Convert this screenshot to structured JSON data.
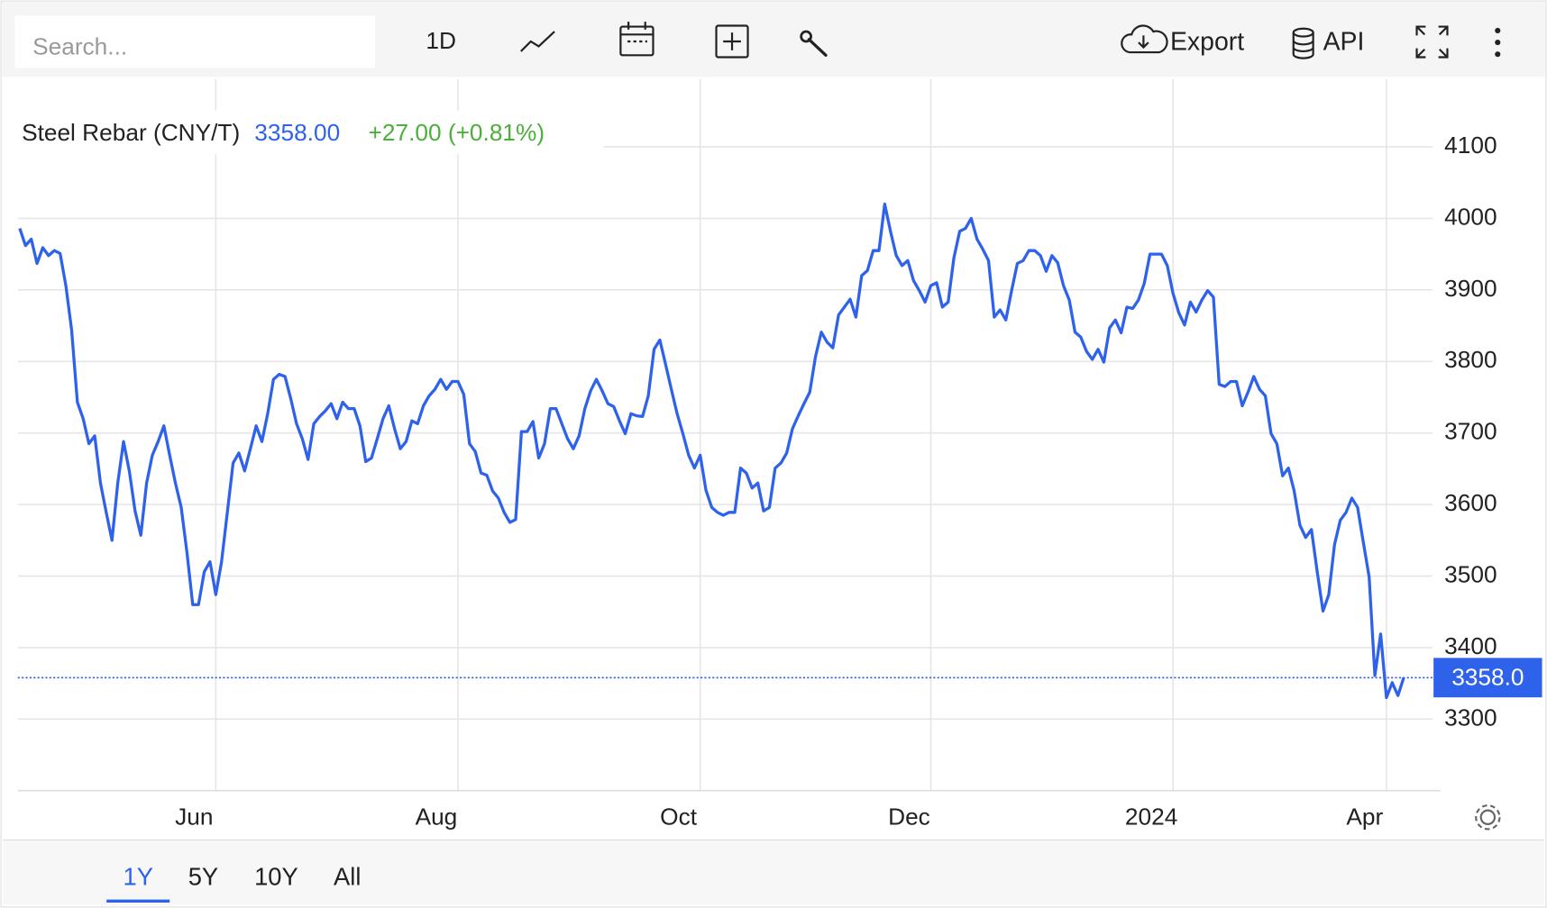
{
  "toolbar": {
    "search_placeholder": "Search...",
    "interval": "1D",
    "export": "Export",
    "api": "API"
  },
  "ranges": [
    "1Y",
    "5Y",
    "10Y",
    "All"
  ],
  "active_range": "1Y",
  "chart_data": {
    "type": "line",
    "title": "Steel Rebar (CNY/T)",
    "price": "3358.00",
    "change": "+27.00 (+0.81%)",
    "last_label": "3358.0",
    "color": "#2f62ea",
    "grid": true,
    "values": [
      3986,
      3962,
      3971,
      3937,
      3959,
      3948,
      3955,
      3951,
      3906,
      3844,
      3743,
      3720,
      3685,
      3696,
      3630,
      3589,
      3550,
      3630,
      3688,
      3647,
      3591,
      3557,
      3630,
      3669,
      3688,
      3710,
      3669,
      3630,
      3596,
      3533,
      3460,
      3460,
      3506,
      3520,
      3474,
      3520,
      3589,
      3658,
      3672,
      3647,
      3678,
      3710,
      3688,
      3727,
      3775,
      3782,
      3779,
      3748,
      3713,
      3692,
      3663,
      3713,
      3723,
      3731,
      3741,
      3720,
      3743,
      3734,
      3734,
      3710,
      3660,
      3665,
      3692,
      3720,
      3738,
      3706,
      3678,
      3688,
      3717,
      3713,
      3738,
      3752,
      3761,
      3775,
      3761,
      3772,
      3772,
      3754,
      3685,
      3674,
      3644,
      3641,
      3619,
      3609,
      3589,
      3575,
      3579,
      3702,
      3702,
      3716,
      3665,
      3685,
      3734,
      3734,
      3713,
      3692,
      3678,
      3696,
      3734,
      3759,
      3775,
      3759,
      3741,
      3737,
      3717,
      3699,
      3727,
      3724,
      3723,
      3752,
      3817,
      3830,
      3796,
      3761,
      3727,
      3699,
      3669,
      3651,
      3669,
      3620,
      3596,
      3589,
      3585,
      3589,
      3589,
      3651,
      3644,
      3623,
      3630,
      3591,
      3596,
      3651,
      3658,
      3672,
      3706,
      3724,
      3741,
      3757,
      3807,
      3841,
      3827,
      3819,
      3865,
      3876,
      3887,
      3862,
      3920,
      3927,
      3955,
      3955,
      4020,
      3982,
      3948,
      3934,
      3941,
      3913,
      3899,
      3883,
      3906,
      3910,
      3876,
      3883,
      3945,
      3982,
      3986,
      4000,
      3971,
      3957,
      3941,
      3862,
      3872,
      3858,
      3899,
      3937,
      3941,
      3955,
      3955,
      3948,
      3926,
      3948,
      3938,
      3906,
      3886,
      3841,
      3834,
      3814,
      3803,
      3817,
      3799,
      3847,
      3858,
      3840,
      3876,
      3874,
      3886,
      3909,
      3950,
      3950,
      3950,
      3934,
      3895,
      3868,
      3851,
      3883,
      3869,
      3886,
      3899,
      3890,
      3768,
      3765,
      3772,
      3772,
      3738,
      3757,
      3779,
      3761,
      3752,
      3699,
      3685,
      3640,
      3651,
      3619,
      3571,
      3554,
      3565,
      3506,
      3451,
      3474,
      3544,
      3578,
      3589,
      3609,
      3596,
      3547,
      3499,
      3361,
      3419,
      3330,
      3351,
      3333,
      3358
    ],
    "xlim": [
      0,
      245
    ],
    "xticks": [
      {
        "value": 34,
        "label": "Jun"
      },
      {
        "value": 76,
        "label": "Aug"
      },
      {
        "value": 118,
        "label": "Oct"
      },
      {
        "value": 158,
        "label": "Dec"
      },
      {
        "value": 200,
        "label": "2024"
      },
      {
        "value": 237,
        "label": "Apr"
      }
    ],
    "ylim": [
      3200,
      4195
    ],
    "yticks": [
      3300,
      3400,
      3500,
      3600,
      3700,
      3800,
      3900,
      4000,
      4100
    ]
  }
}
